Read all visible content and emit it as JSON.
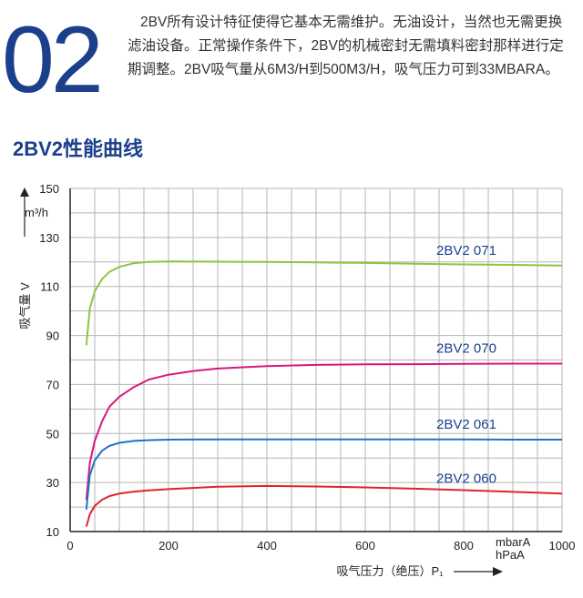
{
  "header": {
    "number": "02",
    "paragraph": "2BV所有设计特征使得它基本无需维护。无油设计，当然也无需更换滤油设备。正常操作条件下，2BV的机械密封无需填料密封那样进行定期调整。2BV吸气量从6M3/H到500M3/H，吸气压力可到33MBARA。"
  },
  "section": {
    "title": "2BV2性能曲线"
  },
  "chart_data": {
    "type": "line",
    "xlabel": "吸气压力（绝压）P₁",
    "xunit_line1": "mbarA",
    "xunit_line2": "hPaA",
    "ylabel": "吸气量 V",
    "yunit": "m³/h",
    "xlim": [
      0,
      1000
    ],
    "ylim": [
      10,
      150
    ],
    "x_ticks": [
      0,
      200,
      400,
      600,
      800,
      1000
    ],
    "y_ticks": [
      10,
      30,
      50,
      70,
      90,
      110,
      130,
      150
    ],
    "grid": true,
    "colors": {
      "grid": "#b5b5b5",
      "axis": "#222222",
      "label": "#1c3f8c"
    },
    "series": [
      {
        "name": "2BV2 071",
        "color": "#8dc63f",
        "x": [
          33,
          40,
          50,
          65,
          80,
          100,
          130,
          160,
          200,
          300,
          400,
          500,
          600,
          700,
          800,
          900,
          1000
        ],
        "y": [
          86,
          101,
          108,
          113,
          116,
          118,
          119.5,
          120,
          120.2,
          120.1,
          120,
          119.8,
          119.6,
          119.3,
          119,
          118.8,
          118.5
        ]
      },
      {
        "name": "2BV2 070",
        "color": "#d6187f",
        "x": [
          33,
          40,
          50,
          65,
          80,
          100,
          130,
          160,
          200,
          250,
          300,
          400,
          500,
          600,
          700,
          800,
          900,
          1000
        ],
        "y": [
          23,
          38,
          47,
          55,
          61,
          65,
          69,
          72,
          74,
          75.5,
          76.5,
          77.5,
          78,
          78.2,
          78.3,
          78.4,
          78.5,
          78.5
        ]
      },
      {
        "name": "2BV2 061",
        "color": "#1f73c2",
        "x": [
          33,
          40,
          50,
          65,
          80,
          100,
          130,
          160,
          200,
          300,
          400,
          500,
          600,
          700,
          800,
          900,
          1000
        ],
        "y": [
          19,
          33,
          39,
          43,
          45,
          46.2,
          47,
          47.3,
          47.5,
          47.6,
          47.6,
          47.6,
          47.6,
          47.6,
          47.6,
          47.5,
          47.5
        ]
      },
      {
        "name": "2BV2 060",
        "color": "#e0242b",
        "x": [
          33,
          40,
          50,
          65,
          80,
          100,
          130,
          160,
          200,
          300,
          400,
          500,
          600,
          700,
          800,
          900,
          1000
        ],
        "y": [
          12,
          17,
          20.5,
          23,
          24.5,
          25.5,
          26.3,
          26.8,
          27.3,
          28.3,
          28.6,
          28.4,
          28,
          27.5,
          26.9,
          26.2,
          25.5
        ]
      }
    ]
  }
}
